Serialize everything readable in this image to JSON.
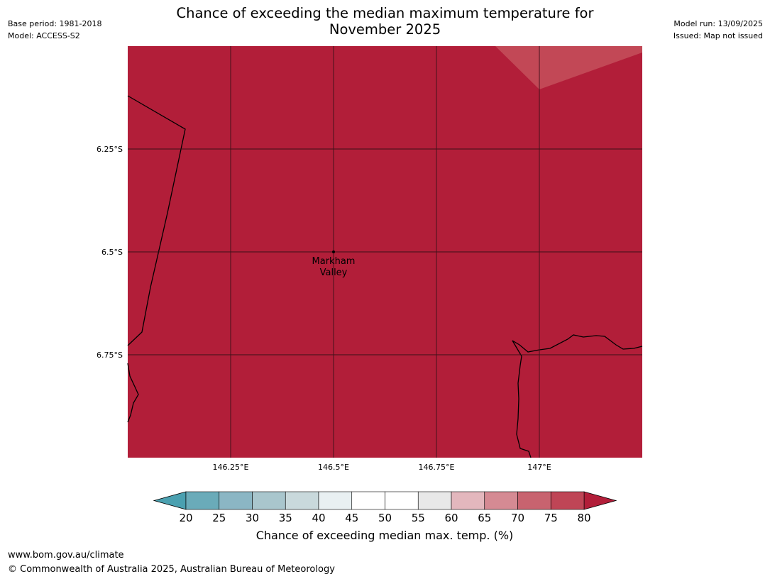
{
  "header": {
    "base_period": "Base period: 1981-2018",
    "model": "Model: ACCESS-S2",
    "model_run": "Model run: 13/09/2025",
    "issued": "Issued: Map not issued",
    "title_line1": "Chance of exceeding the median maximum temperature for",
    "title_line2": "November 2025"
  },
  "map": {
    "fill_color": "#b21e39",
    "light_patch_color": "#c24856",
    "gridline_color": "#3a1018",
    "lat_labels": [
      "6.25°S",
      "6.5°S",
      "6.75°S"
    ],
    "lon_labels": [
      "146.25°E",
      "146.5°E",
      "146.75°E",
      "147°E"
    ],
    "place": {
      "name_line1": "Markham",
      "name_line2": "Valley",
      "lon": 146.5,
      "lat": -6.5
    },
    "extent": {
      "lon_min": 146.0,
      "lon_max": 147.25,
      "lat_min": -7.0,
      "lat_max": -6.0
    }
  },
  "colorbar": {
    "ticks": [
      "20",
      "25",
      "30",
      "35",
      "40",
      "45",
      "50",
      "55",
      "60",
      "65",
      "70",
      "75",
      "80"
    ],
    "under_color": "#4aa0b0",
    "over_color": "#b21e39",
    "colors": [
      "#6aabb9",
      "#8bb6c4",
      "#a9c6cd",
      "#c9d9dc",
      "#e9f0f2",
      "#ffffff",
      "#ffffff",
      "#e8e8e8",
      "#e3b7bd",
      "#d58a93",
      "#c8636f",
      "#bf4556"
    ],
    "title": "Chance of exceeding median max. temp. (%)"
  },
  "footer": {
    "url": "www.bom.gov.au/climate",
    "copyright": "© Commonwealth of Australia 2025, Australian Bureau of Meteorology"
  }
}
